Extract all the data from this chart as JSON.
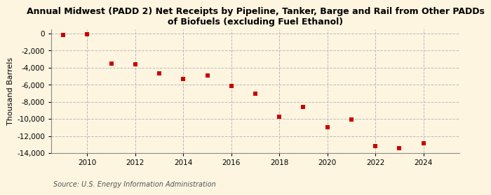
{
  "title": "Annual Midwest (PADD 2) Net Receipts by Pipeline, Tanker, Barge and Rail from Other PADDs\nof Biofuels (excluding Fuel Ethanol)",
  "ylabel": "Thousand Barrels",
  "source": "Source: U.S. Energy Information Administration",
  "background_color": "#fdf5e0",
  "plot_background_color": "#fdf5e0",
  "marker_color": "#cc0000",
  "marker": "s",
  "marker_size": 4,
  "years": [
    2009,
    2010,
    2011,
    2012,
    2013,
    2014,
    2015,
    2016,
    2017,
    2018,
    2019,
    2020,
    2021,
    2022,
    2023,
    2024
  ],
  "values": [
    -200,
    -100,
    -3500,
    -3600,
    -4700,
    -5300,
    -4900,
    -6100,
    -7000,
    -9700,
    -8600,
    -11000,
    -10100,
    -13200,
    -13400,
    -12800
  ],
  "ylim": [
    -14000,
    500
  ],
  "xlim": [
    2008.5,
    2025.5
  ],
  "yticks": [
    0,
    -2000,
    -4000,
    -6000,
    -8000,
    -10000,
    -12000,
    -14000
  ],
  "xticks": [
    2010,
    2012,
    2014,
    2016,
    2018,
    2020,
    2022,
    2024
  ],
  "grid_color": "#bbbbbb",
  "grid_linestyle": "--",
  "grid_alpha": 1.0,
  "title_fontsize": 9,
  "axis_fontsize": 8,
  "tick_fontsize": 7.5,
  "source_fontsize": 7
}
